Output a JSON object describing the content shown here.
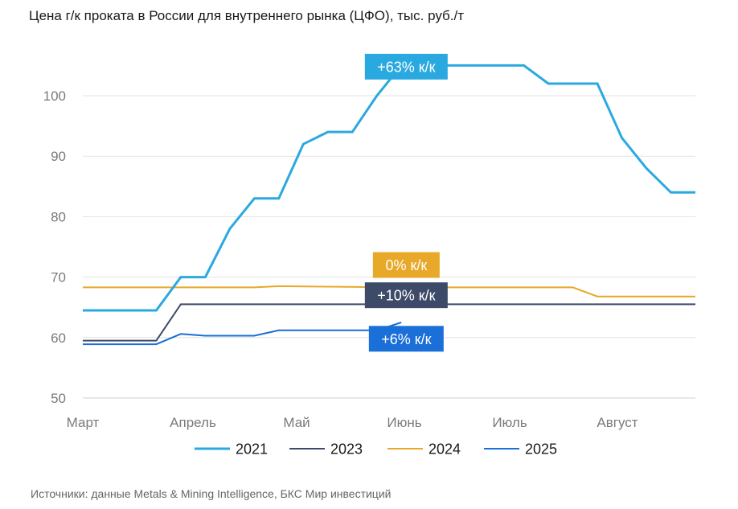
{
  "title": "Цена г/к проката в России для внутреннего рынка (ЦФО), тыс. руб./т",
  "source": "Источники: данные Metals & Mining Intelligence, БКС Мир инвестиций",
  "chart_data": {
    "type": "line",
    "title": "Цена г/к проката в России для внутреннего рынка (ЦФО), тыс. руб./т",
    "xlabel": "",
    "ylabel": "",
    "ylim": [
      50,
      105
    ],
    "yticks": [
      50,
      60,
      70,
      80,
      90,
      100
    ],
    "xlim": [
      0,
      25
    ],
    "xticks": [
      {
        "label": "Март",
        "x": 0
      },
      {
        "label": "Апрель",
        "x": 4.4
      },
      {
        "label": "Май",
        "x": 8.7
      },
      {
        "label": "Июнь",
        "x": 13
      },
      {
        "label": "Июль",
        "x": 17.4
      },
      {
        "label": "Август",
        "x": 21.7
      }
    ],
    "grid": true,
    "legend_position": "bottom",
    "series": [
      {
        "name": "2021",
        "color": "#2aa9e0",
        "x": [
          0,
          3,
          4,
          5,
          6,
          7,
          8,
          9,
          10,
          11,
          12,
          13,
          14,
          15,
          16,
          17,
          18,
          19,
          20,
          21,
          22,
          23,
          24,
          25
        ],
        "values": [
          64.5,
          64.5,
          70,
          70,
          78,
          83,
          83,
          92,
          94,
          94,
          100,
          105,
          105,
          105,
          105,
          105,
          105,
          102,
          102,
          102,
          93,
          88,
          84,
          84
        ]
      },
      {
        "name": "2023",
        "color": "#3d4a68",
        "x": [
          0,
          3,
          4,
          25
        ],
        "values": [
          59.5,
          59.5,
          65.5,
          65.5
        ]
      },
      {
        "name": "2024",
        "color": "#e8a82a",
        "x": [
          0,
          7,
          8,
          13,
          20,
          21,
          25
        ],
        "values": [
          68.3,
          68.3,
          68.5,
          68.3,
          68.3,
          66.8,
          66.8
        ]
      },
      {
        "name": "2025",
        "color": "#1a6fd8",
        "x": [
          0,
          3,
          4,
          5,
          7,
          8,
          12,
          13
        ],
        "values": [
          58.9,
          58.9,
          60.6,
          60.3,
          60.3,
          61.2,
          61.2,
          62.5
        ]
      }
    ],
    "annotations": [
      {
        "text": "+63% к/к",
        "series": "2021",
        "color": "#2aa9e0",
        "x": 13.2,
        "y": 104.8
      },
      {
        "text": "0% к/к",
        "series": "2024",
        "color": "#e8a82a",
        "x": 13.2,
        "y": 72.0
      },
      {
        "text": "+10% к/к",
        "series": "2023",
        "color": "#3d4a68",
        "x": 13.2,
        "y": 67.0
      },
      {
        "text": "+6% к/к",
        "series": "2025",
        "color": "#1a6fd8",
        "x": 13.2,
        "y": 59.8
      }
    ]
  }
}
